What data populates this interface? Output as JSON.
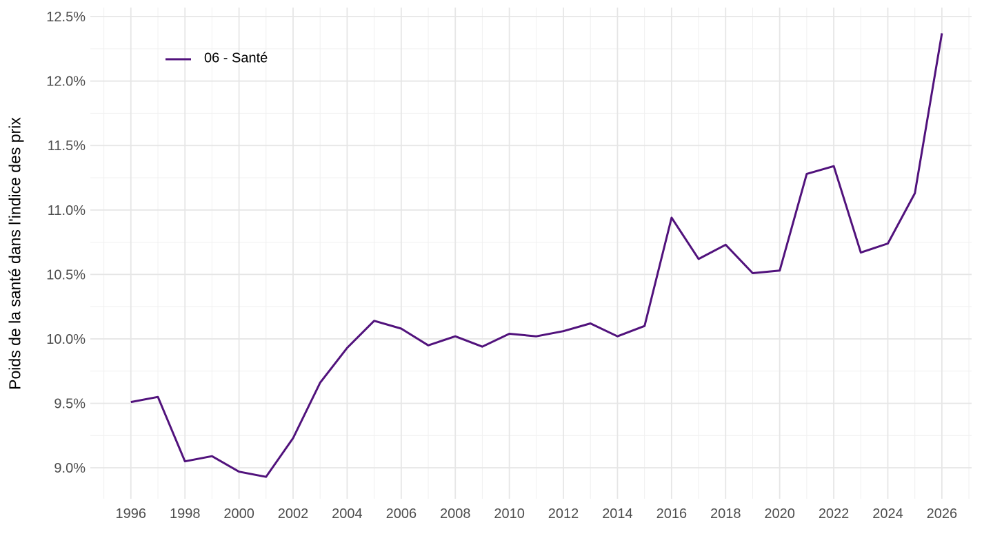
{
  "accent_color": "#51127C",
  "text": {
    "y_axis_title": "Poids de la santé dans l'indice des prix",
    "legend_label": "06 - Santé"
  },
  "chart_data": {
    "type": "line",
    "title": "",
    "xlabel": "",
    "ylabel": "Poids de la santé dans l'indice des prix",
    "legend": {
      "position": "inside-top-left",
      "entries": [
        "06 - Santé"
      ]
    },
    "x": [
      1996,
      1997,
      1998,
      1999,
      2000,
      2001,
      2002,
      2003,
      2004,
      2005,
      2006,
      2007,
      2008,
      2009,
      2010,
      2011,
      2012,
      2013,
      2014,
      2015,
      2016,
      2017,
      2018,
      2019,
      2020,
      2021,
      2022,
      2023,
      2024,
      2025,
      2026
    ],
    "series": [
      {
        "name": "06 - Santé",
        "color": "#51127C",
        "values": [
          9.51,
          9.55,
          9.05,
          9.09,
          8.97,
          8.93,
          9.23,
          9.66,
          9.93,
          10.14,
          10.08,
          9.95,
          10.02,
          9.94,
          10.04,
          10.02,
          10.06,
          10.12,
          10.02,
          10.1,
          10.94,
          10.62,
          10.73,
          10.51,
          10.53,
          11.28,
          11.34,
          10.67,
          10.74,
          11.13,
          12.37
        ]
      }
    ],
    "x_ticks": [
      {
        "value": 1996,
        "label": "1996"
      },
      {
        "value": 1998,
        "label": "1998"
      },
      {
        "value": 2000,
        "label": "2000"
      },
      {
        "value": 2002,
        "label": "2002"
      },
      {
        "value": 2004,
        "label": "2004"
      },
      {
        "value": 2006,
        "label": "2006"
      },
      {
        "value": 2008,
        "label": "2008"
      },
      {
        "value": 2010,
        "label": "2010"
      },
      {
        "value": 2012,
        "label": "2012"
      },
      {
        "value": 2014,
        "label": "2014"
      },
      {
        "value": 2016,
        "label": "2016"
      },
      {
        "value": 2018,
        "label": "2018"
      },
      {
        "value": 2020,
        "label": "2020"
      },
      {
        "value": 2022,
        "label": "2022"
      },
      {
        "value": 2024,
        "label": "2024"
      },
      {
        "value": 2026,
        "label": "2026"
      }
    ],
    "y_ticks": [
      {
        "value": 9.0,
        "label": "9.0%"
      },
      {
        "value": 9.5,
        "label": "9.5%"
      },
      {
        "value": 10.0,
        "label": "10.0%"
      },
      {
        "value": 10.5,
        "label": "10.5%"
      },
      {
        "value": 11.0,
        "label": "11.0%"
      },
      {
        "value": 11.5,
        "label": "11.5%"
      },
      {
        "value": 12.0,
        "label": "12.0%"
      },
      {
        "value": 12.5,
        "label": "12.5%"
      }
    ],
    "xlim": [
      1994.5,
      2027.1
    ],
    "ylim": [
      8.76,
      12.57
    ],
    "grid": {
      "major": true,
      "minor": true
    },
    "colors": {
      "grid_major": "#e6e6e6",
      "grid_minor": "#f1f1f1",
      "tick_text": "#4d4d4d",
      "title_text": "#000000"
    }
  }
}
